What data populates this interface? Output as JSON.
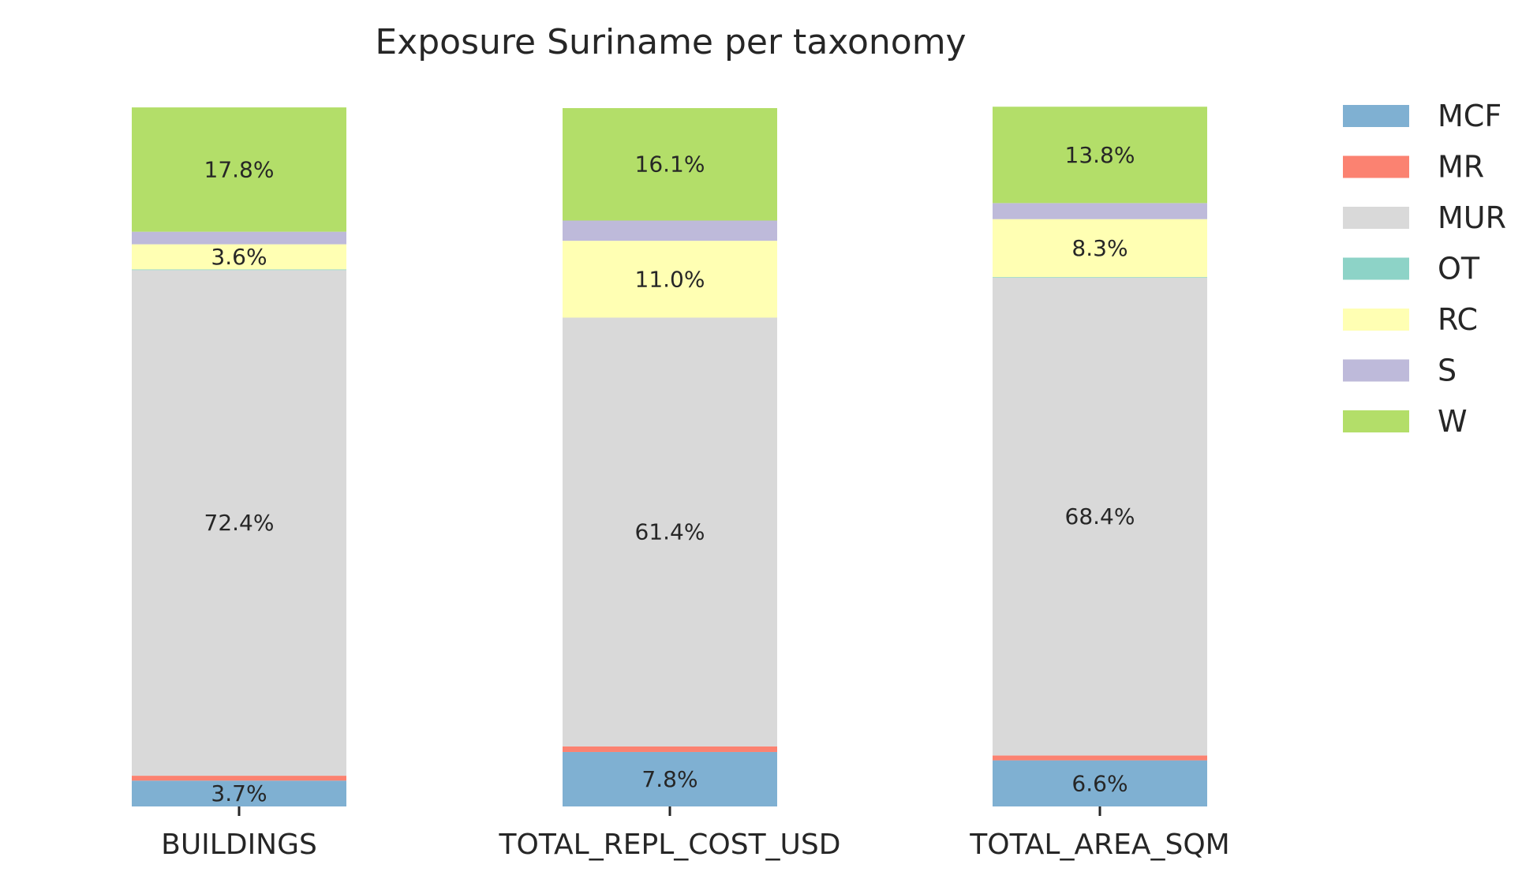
{
  "chart_data": {
    "type": "bar",
    "stacked": true,
    "normalized_to_percent": true,
    "title": "Exposure Suriname per taxonomy",
    "xlabel": "",
    "ylabel": "",
    "ylim": [
      0,
      100
    ],
    "grid": false,
    "legend_position": "right",
    "categories": [
      "BUILDINGS",
      "TOTAL_REPL_COST_USD",
      "TOTAL_AREA_SQM"
    ],
    "series": [
      {
        "name": "MCF",
        "color": "#7fb0d2",
        "values": [
          3.7,
          7.8,
          6.6
        ],
        "labels": [
          "3.7%",
          "7.8%",
          "6.6%"
        ]
      },
      {
        "name": "MR",
        "color": "#fb8271",
        "values": [
          0.7,
          0.8,
          0.7
        ],
        "labels": [
          "",
          "",
          ""
        ]
      },
      {
        "name": "MUR",
        "color": "#d9d9d9",
        "values": [
          72.4,
          61.4,
          68.4
        ],
        "labels": [
          "72.4%",
          "61.4%",
          "68.4%"
        ]
      },
      {
        "name": "OT",
        "color": "#8dd3c7",
        "values": [
          0.1,
          0.0,
          0.1
        ],
        "labels": [
          "",
          "",
          ""
        ]
      },
      {
        "name": "RC",
        "color": "#ffffb3",
        "values": [
          3.6,
          11.0,
          8.3
        ],
        "labels": [
          "3.6%",
          "11.0%",
          "8.3%"
        ]
      },
      {
        "name": "S",
        "color": "#bebada",
        "values": [
          1.8,
          2.9,
          2.3
        ],
        "labels": [
          "",
          "",
          ""
        ]
      },
      {
        "name": "W",
        "color": "#b3de69",
        "values": [
          17.8,
          16.1,
          13.8
        ],
        "labels": [
          "17.8%",
          "16.1%",
          "13.8%"
        ]
      }
    ]
  }
}
